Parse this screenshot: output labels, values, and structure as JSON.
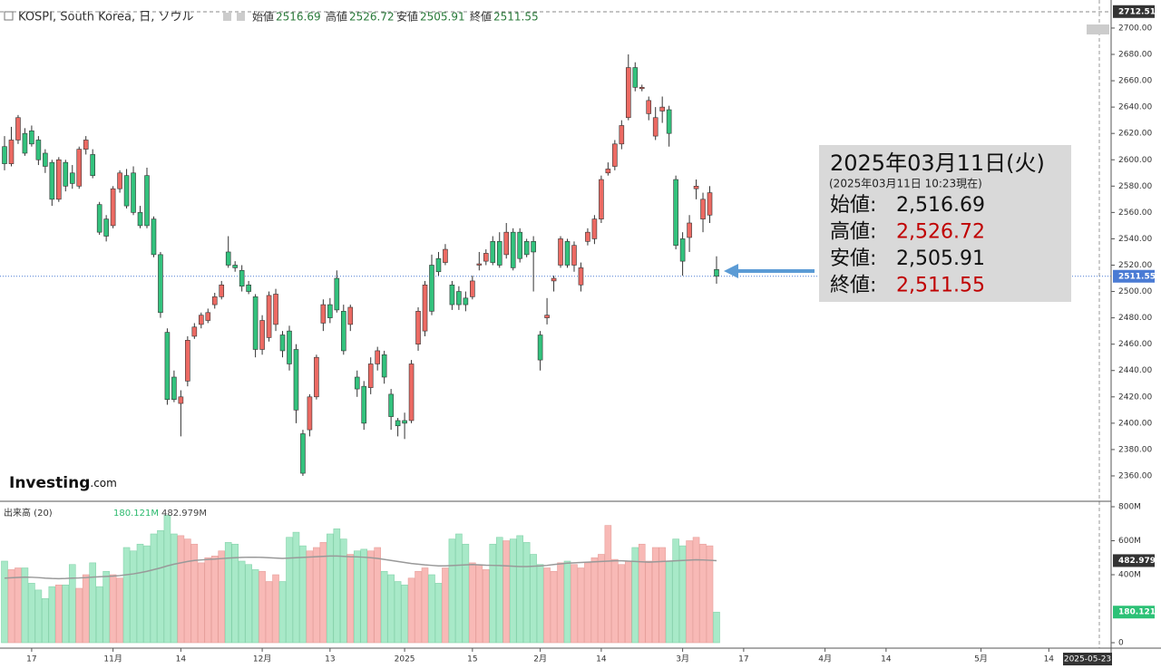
{
  "chart_data": {
    "type": "candlestick",
    "title": "KOSPI, South Korea, 日, ソウル",
    "ohlc_labels": [
      "始値",
      "高値",
      "安値",
      "終値"
    ],
    "ohlc": [
      [
        2610,
        2618,
        2592,
        2597
      ],
      [
        2597,
        2625,
        2595,
        2615
      ],
      [
        2615,
        2634,
        2612,
        2632
      ],
      [
        2620,
        2624,
        2603,
        2605
      ],
      [
        2622,
        2626,
        2610,
        2612
      ],
      [
        2615,
        2618,
        2596,
        2600
      ],
      [
        2605,
        2608,
        2590,
        2595
      ],
      [
        2598,
        2600,
        2565,
        2570
      ],
      [
        2570,
        2602,
        2568,
        2600
      ],
      [
        2598,
        2600,
        2576,
        2580
      ],
      [
        2590,
        2596,
        2578,
        2582
      ],
      [
        2580,
        2610,
        2578,
        2608
      ],
      [
        2608,
        2618,
        2604,
        2615
      ],
      [
        2604,
        2608,
        2586,
        2588
      ],
      [
        2566,
        2568,
        2543,
        2545
      ],
      [
        2555,
        2558,
        2538,
        2542
      ],
      [
        2550,
        2580,
        2548,
        2578
      ],
      [
        2578,
        2592,
        2575,
        2590
      ],
      [
        2588,
        2593,
        2563,
        2565
      ],
      [
        2590,
        2595,
        2558,
        2560
      ],
      [
        2560,
        2565,
        2548,
        2550
      ],
      [
        2588,
        2594,
        2548,
        2550
      ],
      [
        2555,
        2557,
        2526,
        2528
      ],
      [
        2528,
        2530,
        2480,
        2484
      ],
      [
        2469,
        2472,
        2414,
        2418
      ],
      [
        2435,
        2440,
        2416,
        2418
      ],
      [
        2415,
        2425,
        2390,
        2420
      ],
      [
        2432,
        2466,
        2428,
        2463
      ],
      [
        2466,
        2476,
        2464,
        2473
      ],
      [
        2475,
        2484,
        2472,
        2482
      ],
      [
        2478,
        2487,
        2476,
        2484
      ],
      [
        2490,
        2499,
        2487,
        2496
      ],
      [
        2496,
        2508,
        2494,
        2505
      ],
      [
        2530,
        2542,
        2518,
        2520
      ],
      [
        2520,
        2523,
        2515,
        2518
      ],
      [
        2516,
        2520,
        2500,
        2504
      ],
      [
        2505,
        2508,
        2498,
        2500
      ],
      [
        2496,
        2498,
        2450,
        2456
      ],
      [
        2456,
        2482,
        2452,
        2478
      ],
      [
        2465,
        2500,
        2462,
        2497
      ],
      [
        2475,
        2502,
        2470,
        2498
      ],
      [
        2467,
        2470,
        2450,
        2455
      ],
      [
        2470,
        2474,
        2440,
        2445
      ],
      [
        2456,
        2460,
        2400,
        2410
      ],
      [
        2392,
        2395,
        2360,
        2362
      ],
      [
        2395,
        2422,
        2390,
        2420
      ],
      [
        2420,
        2452,
        2418,
        2450
      ],
      [
        2476,
        2494,
        2470,
        2490
      ],
      [
        2490,
        2495,
        2476,
        2480
      ],
      [
        2510,
        2516,
        2484,
        2486
      ],
      [
        2485,
        2490,
        2452,
        2455
      ],
      [
        2475,
        2490,
        2470,
        2488
      ],
      [
        2435,
        2440,
        2420,
        2426
      ],
      [
        2428,
        2432,
        2395,
        2400
      ],
      [
        2427,
        2450,
        2422,
        2445
      ],
      [
        2445,
        2458,
        2440,
        2455
      ],
      [
        2452,
        2455,
        2430,
        2435
      ],
      [
        2422,
        2426,
        2395,
        2405
      ],
      [
        2402,
        2404,
        2390,
        2398
      ],
      [
        2402,
        2408,
        2388,
        2400
      ],
      [
        2402,
        2448,
        2400,
        2445
      ],
      [
        2460,
        2488,
        2455,
        2485
      ],
      [
        2470,
        2508,
        2466,
        2505
      ],
      [
        2520,
        2528,
        2482,
        2485
      ],
      [
        2525,
        2530,
        2512,
        2515
      ],
      [
        2522,
        2536,
        2520,
        2532
      ],
      [
        2505,
        2508,
        2486,
        2490
      ],
      [
        2500,
        2504,
        2486,
        2490
      ],
      [
        2495,
        2500,
        2485,
        2490
      ],
      [
        2496,
        2512,
        2494,
        2508
      ],
      [
        2520,
        2530,
        2516,
        2521
      ],
      [
        2523,
        2532,
        2520,
        2529
      ],
      [
        2538,
        2542,
        2520,
        2522
      ],
      [
        2538,
        2545,
        2518,
        2520
      ],
      [
        2528,
        2552,
        2525,
        2545
      ],
      [
        2545,
        2548,
        2516,
        2518
      ],
      [
        2545,
        2548,
        2522,
        2525
      ],
      [
        2538,
        2540,
        2526,
        2528
      ],
      [
        2538,
        2542,
        2500,
        2530
      ],
      [
        2467,
        2470,
        2440,
        2448
      ],
      [
        2480,
        2495,
        2475,
        2482
      ],
      [
        2508,
        2512,
        2500,
        2510
      ],
      [
        2520,
        2542,
        2518,
        2540
      ],
      [
        2538,
        2540,
        2518,
        2520
      ],
      [
        2520,
        2538,
        2515,
        2535
      ],
      [
        2505,
        2522,
        2500,
        2518
      ],
      [
        2538,
        2548,
        2535,
        2545
      ],
      [
        2540,
        2558,
        2536,
        2555
      ],
      [
        2555,
        2588,
        2552,
        2585
      ],
      [
        2590,
        2598,
        2588,
        2593
      ],
      [
        2595,
        2615,
        2592,
        2612
      ],
      [
        2612,
        2630,
        2608,
        2626
      ],
      [
        2632,
        2680,
        2630,
        2670
      ],
      [
        2670,
        2674,
        2652,
        2655
      ],
      [
        2654,
        2657,
        2652,
        2655
      ],
      [
        2635,
        2648,
        2630,
        2645
      ],
      [
        2618,
        2640,
        2615,
        2632
      ],
      [
        2637,
        2648,
        2628,
        2640
      ],
      [
        2638,
        2641,
        2610,
        2620
      ],
      [
        2585,
        2588,
        2532,
        2535
      ],
      [
        2540,
        2545,
        2512,
        2523
      ],
      [
        2541,
        2558,
        2530,
        2552
      ],
      [
        2578,
        2585,
        2570,
        2580
      ],
      [
        2555,
        2575,
        2545,
        2570
      ],
      [
        2558,
        2580,
        2552,
        2575
      ],
      [
        2516.69,
        2526.72,
        2505.91,
        2511.55
      ]
    ],
    "up_color": "#ec6a63",
    "down_color": "#33c27d",
    "ylim": [
      2341.4,
      2721.3
    ],
    "yticks": [
      {
        "value": 2360,
        "label": "2360.00"
      },
      {
        "value": 2380,
        "label": "2380.00"
      },
      {
        "value": 2400,
        "label": "2400.00"
      },
      {
        "value": 2420,
        "label": "2420.00"
      },
      {
        "value": 2440,
        "label": "2440.00"
      },
      {
        "value": 2460,
        "label": "2460.00"
      },
      {
        "value": 2480,
        "label": "2480.00"
      },
      {
        "value": 2500,
        "label": "2500.00"
      },
      {
        "value": 2520,
        "label": "2520.00"
      },
      {
        "value": 2540,
        "label": "2540.00"
      },
      {
        "value": 2560,
        "label": "2560.00"
      },
      {
        "value": 2580,
        "label": "2580.00"
      },
      {
        "value": 2600,
        "label": "2600.00"
      },
      {
        "value": 2620,
        "label": "2620.00"
      },
      {
        "value": 2640,
        "label": "2640.00"
      },
      {
        "value": 2660,
        "label": "2660.00"
      },
      {
        "value": 2680,
        "label": "2680.00"
      },
      {
        "value": 2700,
        "label": "2700.00"
      }
    ],
    "range_top": 2712.51,
    "xticks": [
      {
        "value": 4,
        "label": "17"
      },
      {
        "value": 16,
        "label": "11月"
      },
      {
        "value": 26,
        "label": "14"
      },
      {
        "value": 38,
        "label": "12月"
      },
      {
        "value": 48,
        "label": "13"
      },
      {
        "value": 59,
        "label": "2025"
      },
      {
        "value": 69,
        "label": "15"
      },
      {
        "value": 79,
        "label": "2月"
      },
      {
        "value": 88,
        "label": "14"
      },
      {
        "value": 100,
        "label": "3月"
      },
      {
        "value": 109,
        "label": "17"
      },
      {
        "value": 121,
        "label": "4月"
      },
      {
        "value": 130,
        "label": "14"
      },
      {
        "value": 144,
        "label": "5月"
      },
      {
        "value": 154,
        "label": "14"
      }
    ],
    "x_end_label": "2025-05-23",
    "volume_title": "出来高 (20)",
    "volume": [
      480,
      430,
      440,
      440,
      350,
      310,
      260,
      330,
      340,
      340,
      460,
      320,
      400,
      470,
      330,
      420,
      400,
      380,
      560,
      540,
      580,
      570,
      640,
      660,
      750,
      640,
      630,
      610,
      580,
      470,
      500,
      510,
      540,
      590,
      580,
      480,
      460,
      430,
      420,
      360,
      400,
      360,
      620,
      650,
      570,
      540,
      560,
      590,
      640,
      670,
      610,
      520,
      540,
      550,
      540,
      560,
      420,
      400,
      360,
      340,
      380,
      420,
      440,
      400,
      350,
      440,
      610,
      640,
      580,
      470,
      460,
      430,
      580,
      620,
      600,
      610,
      630,
      590,
      520,
      460,
      440,
      420,
      470,
      480,
      460,
      440,
      470,
      500,
      520,
      690,
      490,
      460,
      480,
      560,
      580,
      480,
      560,
      560,
      480,
      610,
      570,
      600,
      620,
      580,
      570,
      180.121
    ],
    "volume_label": "180.121M",
    "volume_ma": [
      380,
      382,
      384,
      386,
      385,
      383,
      380,
      378,
      377,
      378,
      380,
      381,
      383,
      386,
      388,
      390,
      392,
      395,
      400,
      405,
      412,
      420,
      430,
      440,
      452,
      462,
      470,
      478,
      484,
      487,
      490,
      492,
      495,
      498,
      500,
      502,
      503,
      503,
      502,
      500,
      498,
      496,
      498,
      500,
      502,
      504,
      506,
      508,
      510,
      510,
      508,
      506,
      505,
      503,
      500,
      496,
      490,
      484,
      478,
      472,
      466,
      462,
      458,
      455,
      452,
      452,
      454,
      456,
      458,
      460,
      458,
      456,
      455,
      454,
      452,
      450,
      448,
      448,
      450,
      452,
      455,
      460,
      464,
      468,
      470,
      472,
      474,
      476,
      478,
      480,
      482,
      482,
      480,
      478,
      476,
      474,
      476,
      478,
      480,
      482,
      484,
      486,
      488,
      487,
      485,
      482.979
    ],
    "volume_ma_label": "482.979M",
    "vlim": [
      -32,
      832
    ],
    "vticks": [
      {
        "value": 800,
        "label": "800M"
      },
      {
        "value": 600,
        "label": "600M"
      },
      {
        "value": 400,
        "label": "400M"
      },
      0
    ],
    "brand": [
      "Investing",
      ".com"
    ],
    "info": {
      "date": "2025年03月11日(火)",
      "note": "(2025年03月11日 10:23現在)",
      "labels": [
        "始値:",
        "高値:",
        "安値:",
        "終値:"
      ],
      "values": [
        "2,516.69",
        "2,526.72",
        "2,505.91",
        "2,511.55"
      ],
      "highlight": [
        false,
        true,
        false,
        true
      ]
    }
  }
}
